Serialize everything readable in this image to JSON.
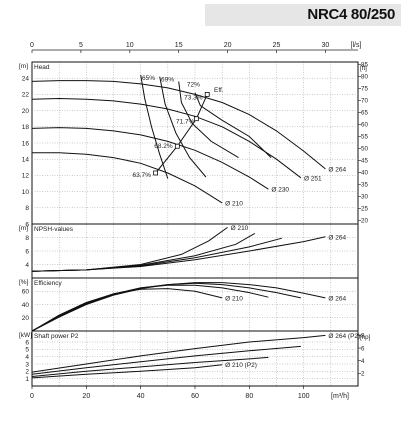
{
  "header": {
    "model": "NRC4 80/250"
  },
  "axes": {
    "top_unit": "[l/s]",
    "top_ticks": [
      0,
      5,
      10,
      15,
      20,
      25,
      30
    ],
    "bottom_unit": "[m³/h]",
    "bottom_ticks": [
      0,
      20,
      40,
      60,
      80,
      100
    ],
    "x_range_m3h": [
      0,
      120
    ]
  },
  "chart_data": [
    {
      "type": "line",
      "title": "Head",
      "ylabel": "[m]",
      "right_unit": "[ft]",
      "ylim": [
        6,
        26
      ],
      "yticks": [
        6,
        8,
        10,
        12,
        14,
        16,
        18,
        20,
        22,
        24
      ],
      "right_ylim": [
        20,
        85
      ],
      "right_ticks": [
        20,
        25,
        30,
        35,
        40,
        45,
        50,
        55,
        60,
        65,
        70,
        75,
        80,
        85
      ],
      "series": [
        {
          "name": "Ø 264",
          "x": [
            0,
            10,
            20,
            30,
            40,
            50,
            60,
            70,
            80,
            90,
            100,
            108
          ],
          "y": [
            23.6,
            23.7,
            23.7,
            23.6,
            23.3,
            22.8,
            22.0,
            21.0,
            19.5,
            17.5,
            15.0,
            12.8
          ]
        },
        {
          "name": "Ø 251",
          "x": [
            0,
            10,
            20,
            30,
            40,
            50,
            60,
            70,
            80,
            90,
            99
          ],
          "y": [
            21.4,
            21.5,
            21.4,
            21.2,
            20.8,
            20.2,
            19.3,
            18.0,
            16.2,
            14.0,
            11.7
          ]
        },
        {
          "name": "Ø 230",
          "x": [
            0,
            10,
            20,
            30,
            40,
            50,
            60,
            70,
            80,
            87
          ],
          "y": [
            17.8,
            17.9,
            17.8,
            17.5,
            17.0,
            16.2,
            15.1,
            13.6,
            11.8,
            10.3
          ]
        },
        {
          "name": "Ø 210",
          "x": [
            0,
            10,
            20,
            30,
            40,
            50,
            60,
            70
          ],
          "y": [
            14.8,
            14.8,
            14.6,
            14.2,
            13.5,
            12.3,
            10.7,
            8.6
          ]
        }
      ],
      "efficiency_labels": [
        {
          "label": "65%",
          "x": 40.5,
          "y": 23.8
        },
        {
          "label": "69%",
          "x": 47.5,
          "y": 23.6
        },
        {
          "label": "72%",
          "x": 57,
          "y": 23.0
        },
        {
          "label": "73.3%",
          "x": 56,
          "y": 21.4
        },
        {
          "label": "Eff.",
          "x": 67,
          "y": 22.3
        },
        {
          "label": "71.7%",
          "x": 53,
          "y": 18.4
        },
        {
          "label": "68.2%",
          "x": 45,
          "y": 15.4
        },
        {
          "label": "63.7%",
          "x": 37,
          "y": 11.8
        }
      ],
      "bep_markers": [
        {
          "x": 64.5,
          "y": 22.0
        },
        {
          "x": 60.5,
          "y": 19.0
        },
        {
          "x": 53.5,
          "y": 15.6
        },
        {
          "x": 45.5,
          "y": 12.3
        }
      ]
    },
    {
      "type": "line",
      "title": "NPSH-values",
      "ylabel": "[m]",
      "ylim": [
        2,
        10
      ],
      "yticks": [
        4,
        6,
        8
      ],
      "series": [
        {
          "name": "Ø 210",
          "x": [
            0,
            20,
            40,
            55,
            65,
            72
          ],
          "y": [
            3.0,
            3.2,
            4.0,
            5.5,
            7.5,
            9.5
          ]
        },
        {
          "name": "",
          "x": [
            0,
            20,
            40,
            60,
            75,
            82
          ],
          "y": [
            3.0,
            3.2,
            3.9,
            5.3,
            7.0,
            8.6
          ]
        },
        {
          "name": "",
          "x": [
            0,
            20,
            40,
            60,
            80,
            92
          ],
          "y": [
            3.0,
            3.2,
            3.8,
            5.0,
            6.6,
            7.9
          ]
        },
        {
          "name": "Ø 264",
          "x": [
            0,
            20,
            40,
            60,
            80,
            100,
            108
          ],
          "y": [
            3.0,
            3.2,
            3.7,
            4.7,
            6.0,
            7.4,
            8.1
          ]
        }
      ]
    },
    {
      "type": "line",
      "title": "Efficiency",
      "ylabel": "[%]",
      "ylim": [
        0,
        80
      ],
      "yticks": [
        20,
        40,
        60
      ],
      "series": [
        {
          "name": "Ø 210",
          "x": [
            0,
            10,
            20,
            30,
            40,
            50,
            60,
            70
          ],
          "y": [
            0,
            24,
            43,
            56,
            63,
            64,
            60,
            50
          ]
        },
        {
          "name": "",
          "x": [
            0,
            10,
            20,
            30,
            40,
            50,
            60,
            70,
            80,
            87
          ],
          "y": [
            0,
            23,
            42,
            56,
            65,
            69,
            69,
            65,
            58,
            51
          ]
        },
        {
          "name": "",
          "x": [
            0,
            10,
            20,
            30,
            40,
            50,
            60,
            70,
            80,
            90,
            99
          ],
          "y": [
            0,
            22,
            41,
            55,
            65,
            70,
            72,
            70,
            65,
            58,
            50
          ]
        },
        {
          "name": "Ø 264",
          "x": [
            0,
            10,
            20,
            30,
            40,
            50,
            60,
            70,
            80,
            90,
            100,
            108
          ],
          "y": [
            0,
            21,
            40,
            54,
            64,
            70,
            73,
            73,
            70,
            65,
            57,
            50
          ]
        }
      ]
    },
    {
      "type": "line",
      "title": "Shaft power P2",
      "ylabel": "[kW]",
      "right_unit": "[hp]",
      "ylim": [
        0,
        7.5
      ],
      "yticks": [
        1,
        2,
        3,
        4,
        5,
        6
      ],
      "right_ticks": [
        2,
        4,
        6,
        8
      ],
      "series": [
        {
          "name": "Ø 264 (P2)",
          "x": [
            0,
            20,
            40,
            60,
            80,
            100,
            108
          ],
          "y": [
            1.9,
            3.0,
            4.1,
            5.1,
            6.0,
            6.6,
            6.9
          ]
        },
        {
          "name": "",
          "x": [
            0,
            20,
            40,
            60,
            80,
            99
          ],
          "y": [
            1.6,
            2.5,
            3.3,
            4.1,
            4.8,
            5.4
          ]
        },
        {
          "name": "",
          "x": [
            0,
            20,
            40,
            60,
            80,
            87
          ],
          "y": [
            1.3,
            2.0,
            2.6,
            3.2,
            3.7,
            3.9
          ]
        },
        {
          "name": "Ø 210 (P2)",
          "x": [
            0,
            20,
            40,
            60,
            70
          ],
          "y": [
            1.1,
            1.6,
            2.0,
            2.5,
            2.9
          ]
        }
      ]
    }
  ]
}
